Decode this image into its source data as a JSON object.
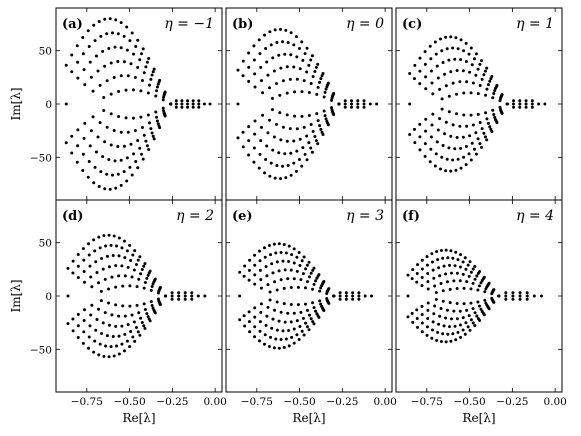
{
  "chart_data": [
    {
      "panel_label": "(a)",
      "eta_label": "η = −1",
      "eta": -1,
      "type": "scatter",
      "xlim": [
        -0.93,
        0.04
      ],
      "ylim": [
        -90,
        90
      ],
      "xticks": [
        {
          "v": -0.75,
          "t": "−0.75"
        },
        {
          "v": -0.5,
          "t": "−0.50"
        },
        {
          "v": -0.25,
          "t": "−0.25"
        },
        {
          "v": 0,
          "t": "0.00"
        }
      ],
      "yticks": [
        {
          "v": 50,
          "t": "50"
        },
        {
          "v": 0,
          "t": "0"
        },
        {
          "v": -50,
          "t": "−50"
        }
      ],
      "xlabel": "",
      "ylabel": "Im[λ]",
      "x_tick_labels_shown": false,
      "y_tick_labels_shown": true,
      "envelope": {
        "x_left": -0.87,
        "x_peak": -0.5,
        "x_tail": -0.26,
        "y_max": 80,
        "rows": 6,
        "tail_points": 8,
        "tail_end": -0.03
      },
      "series": [
        {
          "points": "eigenvalues λ (Re, Im)"
        }
      ]
    },
    {
      "panel_label": "(b)",
      "eta_label": "η = 0",
      "eta": 0,
      "type": "scatter",
      "xlim": [
        -0.93,
        0.04
      ],
      "ylim": [
        -90,
        90
      ],
      "xticks": [
        {
          "v": -0.75,
          "t": "−0.75"
        },
        {
          "v": -0.5,
          "t": "−0.50"
        },
        {
          "v": -0.25,
          "t": "−0.25"
        },
        {
          "v": 0,
          "t": "0.00"
        }
      ],
      "yticks": [
        {
          "v": 50,
          "t": "50"
        },
        {
          "v": 0,
          "t": "0"
        },
        {
          "v": -50,
          "t": "−50"
        }
      ],
      "xlabel": "",
      "ylabel": "",
      "x_tick_labels_shown": false,
      "y_tick_labels_shown": false,
      "envelope": {
        "x_left": -0.86,
        "x_peak": -0.52,
        "x_tail": -0.27,
        "y_max": 70,
        "rows": 6,
        "tail_points": 7,
        "tail_end": -0.05
      }
    },
    {
      "panel_label": "(c)",
      "eta_label": "η = 1",
      "eta": 1,
      "type": "scatter",
      "xlim": [
        -0.93,
        0.04
      ],
      "ylim": [
        -90,
        90
      ],
      "xticks": [
        {
          "v": -0.75,
          "t": "−0.75"
        },
        {
          "v": -0.5,
          "t": "−0.50"
        },
        {
          "v": -0.25,
          "t": "−0.25"
        },
        {
          "v": 0,
          "t": "0.00"
        }
      ],
      "yticks": [
        {
          "v": 50,
          "t": "50"
        },
        {
          "v": 0,
          "t": "0"
        },
        {
          "v": -50,
          "t": "−50"
        }
      ],
      "xlabel": "",
      "ylabel": "",
      "x_tick_labels_shown": false,
      "y_tick_labels_shown": false,
      "envelope": {
        "x_left": -0.85,
        "x_peak": -0.53,
        "x_tail": -0.28,
        "y_max": 63,
        "rows": 6,
        "tail_points": 7,
        "tail_end": -0.06
      }
    },
    {
      "panel_label": "(d)",
      "eta_label": "η = 2",
      "eta": 2,
      "type": "scatter",
      "xlim": [
        -0.93,
        0.04
      ],
      "ylim": [
        -90,
        90
      ],
      "xticks": [
        {
          "v": -0.75,
          "t": "−0.75"
        },
        {
          "v": -0.5,
          "t": "−0.50"
        },
        {
          "v": -0.25,
          "t": "−0.25"
        },
        {
          "v": 0,
          "t": "0.00"
        }
      ],
      "yticks": [
        {
          "v": 50,
          "t": "50"
        },
        {
          "v": 0,
          "t": "0"
        },
        {
          "v": -50,
          "t": "−50"
        }
      ],
      "xlabel": "Re[λ]",
      "ylabel": "Im[λ]",
      "x_tick_labels_shown": true,
      "y_tick_labels_shown": true,
      "envelope": {
        "x_left": -0.86,
        "x_peak": -0.53,
        "x_tail": -0.29,
        "y_max": 57,
        "rows": 6,
        "tail_points": 7,
        "tail_end": -0.06
      }
    },
    {
      "panel_label": "(e)",
      "eta_label": "η = 3",
      "eta": 3,
      "type": "scatter",
      "xlim": [
        -0.93,
        0.04
      ],
      "ylim": [
        -90,
        90
      ],
      "xticks": [
        {
          "v": -0.75,
          "t": "−0.75"
        },
        {
          "v": -0.5,
          "t": "−0.50"
        },
        {
          "v": -0.25,
          "t": "−0.25"
        },
        {
          "v": 0,
          "t": "0.00"
        }
      ],
      "yticks": [
        {
          "v": 50,
          "t": "50"
        },
        {
          "v": 0,
          "t": "0"
        },
        {
          "v": -50,
          "t": "−50"
        }
      ],
      "xlabel": "Re[λ]",
      "ylabel": "",
      "x_tick_labels_shown": true,
      "y_tick_labels_shown": false,
      "envelope": {
        "x_left": -0.85,
        "x_peak": -0.55,
        "x_tail": -0.3,
        "y_max": 49,
        "rows": 6,
        "tail_points": 7,
        "tail_end": -0.08
      }
    },
    {
      "panel_label": "(f)",
      "eta_label": "η = 4",
      "eta": 4,
      "type": "scatter",
      "xlim": [
        -0.93,
        0.04
      ],
      "ylim": [
        -90,
        90
      ],
      "xticks": [
        {
          "v": -0.75,
          "t": "−0.75"
        },
        {
          "v": -0.5,
          "t": "−0.50"
        },
        {
          "v": -0.25,
          "t": "−0.25"
        },
        {
          "v": 0,
          "t": "0.00"
        }
      ],
      "yticks": [
        {
          "v": 50,
          "t": "50"
        },
        {
          "v": 0,
          "t": "0"
        },
        {
          "v": -50,
          "t": "−50"
        }
      ],
      "xlabel": "Re[λ]",
      "ylabel": "",
      "x_tick_labels_shown": true,
      "y_tick_labels_shown": false,
      "envelope": {
        "x_left": -0.86,
        "x_peak": -0.58,
        "x_tail": -0.33,
        "y_max": 43,
        "rows": 6,
        "tail_points": 7,
        "tail_end": -0.08
      }
    }
  ]
}
